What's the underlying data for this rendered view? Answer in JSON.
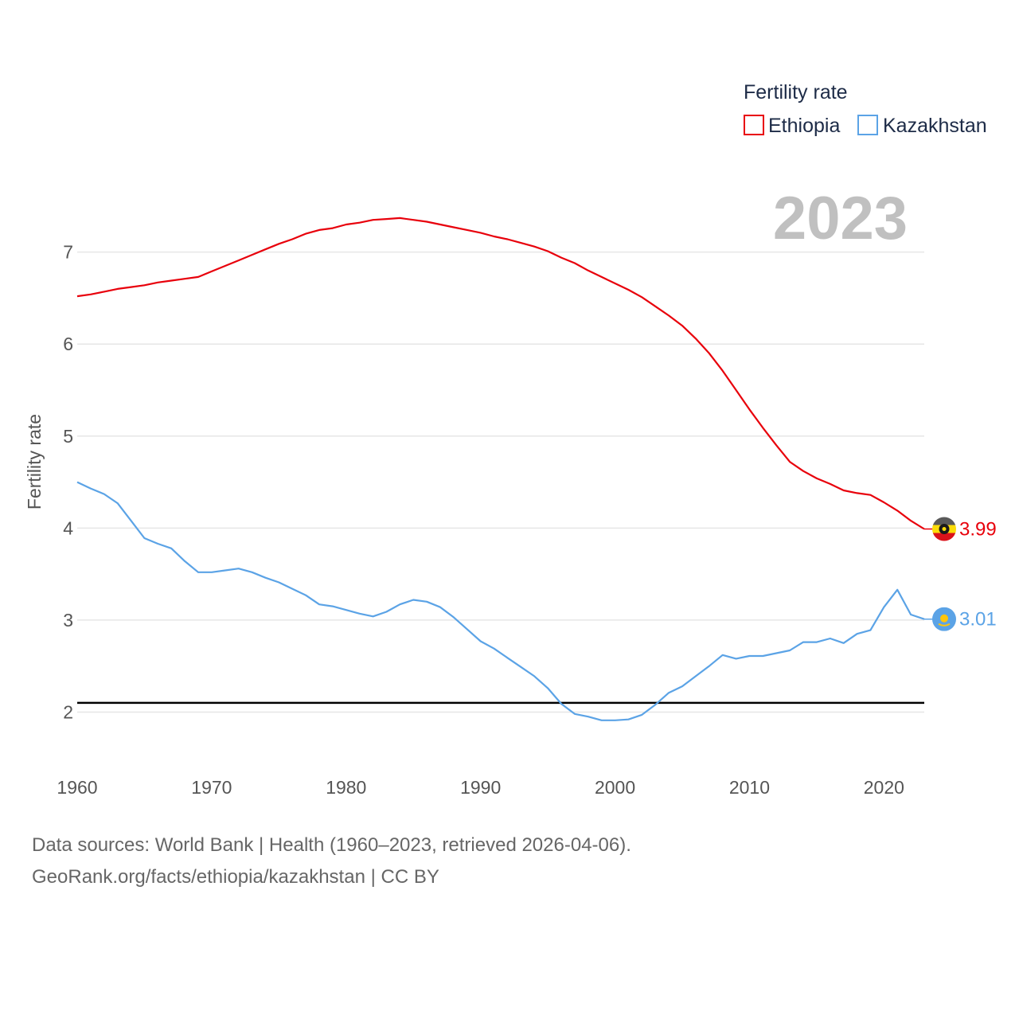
{
  "chart_data": {
    "type": "line",
    "title": "",
    "year_label": "2023",
    "xlabel": "",
    "ylabel": "Fertility rate",
    "xlim": [
      1960,
      2023
    ],
    "ylim": [
      1.45,
      7.75
    ],
    "x_ticks": [
      1960,
      1970,
      1980,
      1990,
      2000,
      2010,
      2020
    ],
    "y_ticks": [
      2,
      3,
      4,
      5,
      6,
      7
    ],
    "grid": true,
    "legend": {
      "title": "Fertility rate",
      "position": "top-right",
      "entries": [
        "Ethiopia",
        "Kazakhstan"
      ]
    },
    "reference_line": {
      "value": 2.1,
      "color": "#000000"
    },
    "x": [
      1960,
      1961,
      1962,
      1963,
      1964,
      1965,
      1966,
      1967,
      1968,
      1969,
      1970,
      1971,
      1972,
      1973,
      1974,
      1975,
      1976,
      1977,
      1978,
      1979,
      1980,
      1981,
      1982,
      1983,
      1984,
      1985,
      1986,
      1987,
      1988,
      1989,
      1990,
      1991,
      1992,
      1993,
      1994,
      1995,
      1996,
      1997,
      1998,
      1999,
      2000,
      2001,
      2002,
      2003,
      2004,
      2005,
      2006,
      2007,
      2008,
      2009,
      2010,
      2011,
      2012,
      2013,
      2014,
      2015,
      2016,
      2017,
      2018,
      2019,
      2020,
      2021,
      2022,
      2023
    ],
    "series": [
      {
        "name": "Ethiopia",
        "color": "#e8000b",
        "end_label": "3.99",
        "values": [
          6.52,
          6.54,
          6.57,
          6.6,
          6.62,
          6.64,
          6.67,
          6.69,
          6.71,
          6.73,
          6.79,
          6.85,
          6.91,
          6.97,
          7.03,
          7.09,
          7.14,
          7.2,
          7.24,
          7.26,
          7.3,
          7.32,
          7.35,
          7.36,
          7.37,
          7.35,
          7.33,
          7.3,
          7.27,
          7.24,
          7.21,
          7.17,
          7.14,
          7.1,
          7.06,
          7.01,
          6.94,
          6.88,
          6.8,
          6.73,
          6.66,
          6.59,
          6.51,
          6.41,
          6.31,
          6.2,
          6.06,
          5.9,
          5.71,
          5.5,
          5.29,
          5.09,
          4.9,
          4.72,
          4.62,
          4.54,
          4.48,
          4.41,
          4.38,
          4.36,
          4.28,
          4.19,
          4.08,
          3.99
        ]
      },
      {
        "name": "Kazakhstan",
        "color": "#5ba3e6",
        "end_label": "3.01",
        "values": [
          4.5,
          4.43,
          4.37,
          4.27,
          4.08,
          3.89,
          3.83,
          3.78,
          3.64,
          3.52,
          3.52,
          3.54,
          3.56,
          3.52,
          3.46,
          3.41,
          3.34,
          3.27,
          3.17,
          3.15,
          3.11,
          3.07,
          3.04,
          3.09,
          3.17,
          3.22,
          3.2,
          3.14,
          3.03,
          2.9,
          2.77,
          2.69,
          2.59,
          2.49,
          2.39,
          2.26,
          2.09,
          1.98,
          1.95,
          1.91,
          1.91,
          1.92,
          1.97,
          2.08,
          2.21,
          2.28,
          2.39,
          2.5,
          2.62,
          2.58,
          2.61,
          2.61,
          2.64,
          2.67,
          2.76,
          2.76,
          2.8,
          2.75,
          2.85,
          2.89,
          3.14,
          3.33,
          3.06,
          3.01
        ]
      }
    ]
  },
  "footer": {
    "line1": "Data sources: World Bank | Health (1960–2023, retrieved 2026-04-06).",
    "line2": "GeoRank.org/facts/ethiopia/kazakhstan | CC BY"
  }
}
